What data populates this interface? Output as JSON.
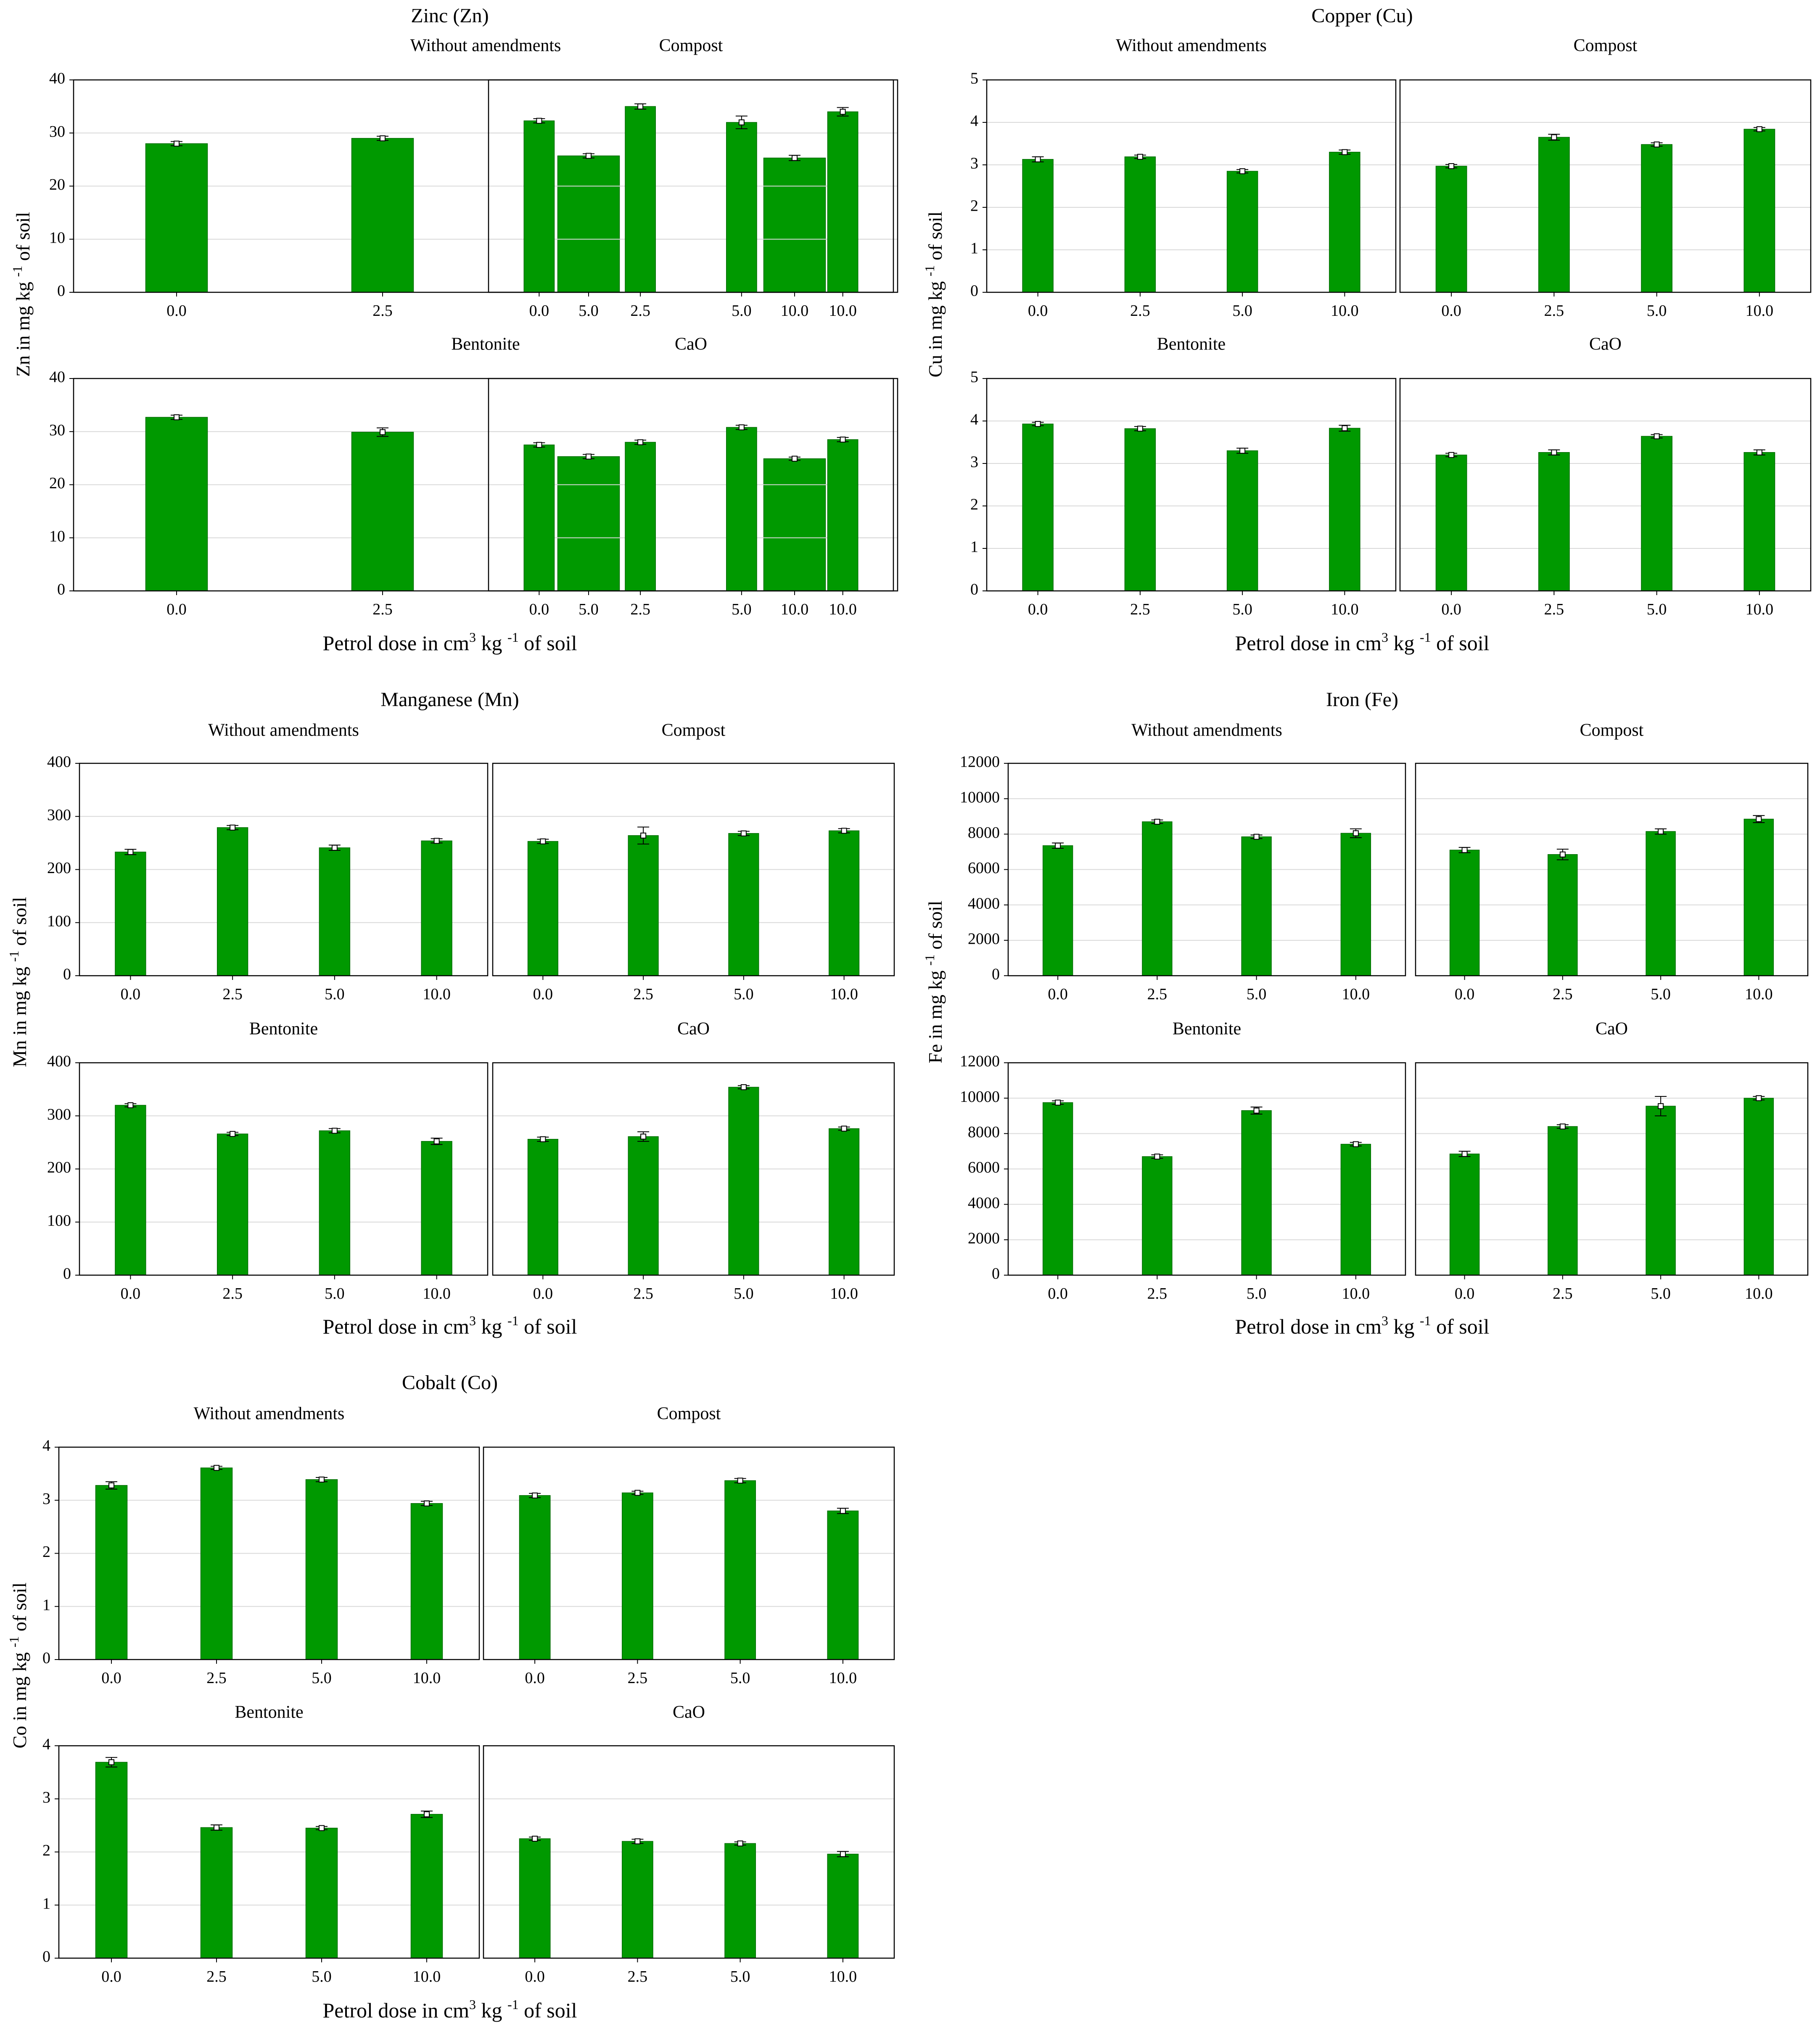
{
  "chart_data": [
    {
      "type": "bar",
      "title": "Zinc (Zn)",
      "ylabel": "Zn in mg  kg -1 of soil",
      "xlabel": "Petrol dose in cm3 kg -1 of soil",
      "ylabel_parts": {
        "before": "Zn in mg  kg ",
        "sup": "-1",
        "after": " of soil"
      },
      "xlabel_parts": {
        "before": "Petrol dose in cm",
        "sup1": "3",
        "mid": " kg ",
        "sup2": "-1",
        "after": " of soil"
      },
      "categories": [
        "0.0",
        "2.5",
        "5.0",
        "10.0"
      ],
      "ylim": [
        0,
        40
      ],
      "yticks": [
        "0",
        "10",
        "20",
        "30",
        "40"
      ],
      "grid": true,
      "panels": [
        {
          "name": "Without amendments",
          "values": [
            28.0,
            29.0,
            25.7,
            25.3
          ],
          "errors": [
            0.4,
            0.4,
            0.4,
            0.5
          ]
        },
        {
          "name": "Compost",
          "values": [
            32.3,
            35.0,
            32.0,
            34.0
          ],
          "errors": [
            0.4,
            0.5,
            1.2,
            0.8
          ]
        },
        {
          "name": "Bentonite",
          "values": [
            32.7,
            29.9,
            25.3,
            24.9
          ],
          "errors": [
            0.4,
            0.8,
            0.4,
            0.3
          ]
        },
        {
          "name": "CaO",
          "values": [
            27.5,
            28.0,
            30.8,
            28.5
          ],
          "errors": [
            0.4,
            0.4,
            0.4,
            0.4
          ]
        }
      ]
    },
    {
      "type": "bar",
      "title": "Copper (Cu)",
      "ylabel": "Cu in mg  kg -1 of soil",
      "xlabel": "Petrol dose in cm3 kg -1 of soil",
      "ylabel_parts": {
        "before": "Cu in mg  kg ",
        "sup": "-1",
        "after": " of soil"
      },
      "xlabel_parts": {
        "before": "Petrol dose in cm",
        "sup1": "3",
        "mid": " kg ",
        "sup2": "-1",
        "after": " of soil"
      },
      "categories": [
        "0.0",
        "2.5",
        "5.0",
        "10.0"
      ],
      "ylim": [
        0,
        5
      ],
      "yticks": [
        "0",
        "1",
        "2",
        "3",
        "4",
        "5"
      ],
      "grid": true,
      "panels": [
        {
          "name": "Without amendments",
          "values": [
            3.13,
            3.19,
            2.85,
            3.3
          ],
          "errors": [
            0.06,
            0.04,
            0.04,
            0.05
          ]
        },
        {
          "name": "Compost",
          "values": [
            2.97,
            3.65,
            3.48,
            3.84
          ],
          "errors": [
            0.04,
            0.07,
            0.04,
            0.04
          ]
        },
        {
          "name": "Bentonite",
          "values": [
            3.93,
            3.82,
            3.3,
            3.83
          ],
          "errors": [
            0.04,
            0.05,
            0.06,
            0.07
          ]
        },
        {
          "name": "CaO",
          "values": [
            3.2,
            3.26,
            3.64,
            3.26
          ],
          "errors": [
            0.04,
            0.06,
            0.04,
            0.06
          ]
        }
      ]
    },
    {
      "type": "bar",
      "title": "Manganese (Mn)",
      "ylabel": "Mn in mg  kg -1 of soil",
      "xlabel": "Petrol dose in cm3 kg -1 of soil",
      "ylabel_parts": {
        "before": "Mn in mg  kg ",
        "sup": "-1",
        "after": " of soil"
      },
      "xlabel_parts": {
        "before": "Petrol dose in cm",
        "sup1": "3",
        "mid": " kg ",
        "sup2": "-1",
        "after": " of soil"
      },
      "categories": [
        "0.0",
        "2.5",
        "5.0",
        "10.0"
      ],
      "ylim": [
        0,
        400
      ],
      "yticks": [
        "0",
        "100",
        "200",
        "300",
        "400"
      ],
      "grid": true,
      "panels": [
        {
          "name": "Without amendments",
          "values": [
            233,
            279,
            241,
            254
          ],
          "errors": [
            5,
            4,
            5,
            4
          ]
        },
        {
          "name": "Compost",
          "values": [
            253,
            264,
            268,
            273
          ],
          "errors": [
            4,
            16,
            4,
            4
          ]
        },
        {
          "name": "Bentonite",
          "values": [
            320,
            266,
            272,
            252
          ],
          "errors": [
            3,
            3,
            4,
            6
          ]
        },
        {
          "name": "CaO",
          "values": [
            256,
            261,
            354,
            276
          ],
          "errors": [
            4,
            9,
            3,
            3
          ]
        }
      ]
    },
    {
      "type": "bar",
      "title": "Iron (Fe)",
      "ylabel": "Fe in mg  kg -1 of soil",
      "xlabel": "Petrol dose in cm3 kg -1 of soil",
      "ylabel_parts": {
        "before": "Fe in mg  kg ",
        "sup": "-1",
        "after": " of soil"
      },
      "xlabel_parts": {
        "before": "Petrol dose in cm",
        "sup1": "3",
        "mid": " kg ",
        "sup2": "-1",
        "after": " of soil"
      },
      "categories": [
        "0.0",
        "2.5",
        "5.0",
        "10.0"
      ],
      "ylim": [
        0,
        12000
      ],
      "yticks": [
        "0",
        "2000",
        "4000",
        "6000",
        "8000",
        "10000",
        "12000"
      ],
      "grid": true,
      "panels": [
        {
          "name": "Without amendments",
          "values": [
            7350,
            8700,
            7850,
            8050
          ],
          "errors": [
            150,
            100,
            100,
            250
          ]
        },
        {
          "name": "Compost",
          "values": [
            7100,
            6850,
            8150,
            8850
          ],
          "errors": [
            150,
            300,
            150,
            200
          ]
        },
        {
          "name": "Bentonite",
          "values": [
            9750,
            6700,
            9300,
            7400
          ],
          "errors": [
            100,
            100,
            200,
            100
          ]
        },
        {
          "name": "CaO",
          "values": [
            6850,
            8400,
            9550,
            10000
          ],
          "errors": [
            150,
            100,
            550,
            100
          ]
        }
      ]
    },
    {
      "type": "bar",
      "title": "Cobalt (Co)",
      "ylabel": "Co in mg  kg -1 of soil",
      "xlabel": "Petrol dose in cm3 kg -1 of soil",
      "ylabel_parts": {
        "before": "Co in mg  kg ",
        "sup": "-1",
        "after": " of soil"
      },
      "xlabel_parts": {
        "before": "Petrol dose in cm",
        "sup1": "3",
        "mid": " kg ",
        "sup2": "-1",
        "after": " of soil"
      },
      "categories": [
        "0.0",
        "2.5",
        "5.0",
        "10.0"
      ],
      "ylim": [
        0,
        4
      ],
      "yticks": [
        "0",
        "1",
        "2",
        "3",
        "4"
      ],
      "grid": true,
      "panels": [
        {
          "name": "Without amendments",
          "values": [
            3.28,
            3.61,
            3.39,
            2.94
          ],
          "errors": [
            0.07,
            0.03,
            0.04,
            0.04
          ]
        },
        {
          "name": "Compost",
          "values": [
            3.09,
            3.14,
            3.37,
            2.8
          ],
          "errors": [
            0.04,
            0.03,
            0.04,
            0.05
          ]
        },
        {
          "name": "Bentonite",
          "values": [
            3.69,
            2.46,
            2.45,
            2.71
          ],
          "errors": [
            0.09,
            0.05,
            0.03,
            0.06
          ]
        },
        {
          "name": "CaO",
          "values": [
            2.25,
            2.2,
            2.16,
            1.96
          ],
          "errors": [
            0.03,
            0.04,
            0.03,
            0.05
          ]
        }
      ]
    }
  ],
  "colors": {
    "bar": "#009900",
    "bar_edge": "#006a00",
    "grid": "#d9d9d9",
    "axis": "#000000"
  }
}
